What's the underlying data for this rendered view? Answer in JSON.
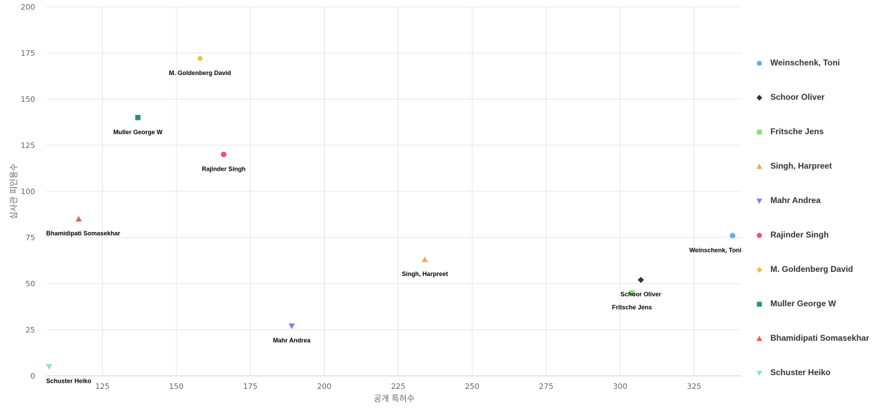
{
  "chart_data": {
    "type": "scatter",
    "xlabel": "공개 특허수",
    "ylabel": "심사관 피인용수",
    "xlim": [
      106,
      341
    ],
    "ylim": [
      0,
      200
    ],
    "xticks": [
      125,
      150,
      175,
      200,
      225,
      250,
      275,
      300,
      325
    ],
    "yticks": [
      0,
      25,
      50,
      75,
      100,
      125,
      150,
      175,
      200
    ],
    "grid": true,
    "legend_position": "right",
    "series": [
      {
        "name": "Weinschenk, Toni",
        "x": 338,
        "y": 76,
        "color": "#6aaee6",
        "marker": "circle"
      },
      {
        "name": "Schoor Oliver",
        "x": 307,
        "y": 52,
        "color": "#333333",
        "marker": "diamond"
      },
      {
        "name": "Fritsche Jens",
        "x": 304,
        "y": 45,
        "color": "#88dd77",
        "marker": "square"
      },
      {
        "name": "Singh, Harpreet",
        "x": 234,
        "y": 63,
        "color": "#f5a25d",
        "marker": "triangle-up"
      },
      {
        "name": "Mahr Andrea",
        "x": 189,
        "y": 27,
        "color": "#7f7fd9",
        "marker": "triangle-down"
      },
      {
        "name": "Rajinder Singh",
        "x": 166,
        "y": 120,
        "color": "#e8537a",
        "marker": "circle"
      },
      {
        "name": "M. Goldenberg David",
        "x": 158,
        "y": 172,
        "color": "#e8c43a",
        "marker": "diamond"
      },
      {
        "name": "Muller George W",
        "x": 137,
        "y": 140,
        "color": "#2a8a8a",
        "marker": "square"
      },
      {
        "name": "Bhamidipati Somasekhar",
        "x": 117,
        "y": 85,
        "color": "#e85a5a",
        "marker": "triangle-up"
      },
      {
        "name": "Schuster Heiko",
        "x": 107,
        "y": 5,
        "color": "#88e0e0",
        "marker": "triangle-down"
      }
    ]
  }
}
